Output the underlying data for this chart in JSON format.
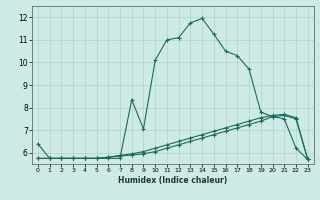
{
  "xlabel": "Humidex (Indice chaleur)",
  "bg_color": "#ceeae7",
  "line_color": "#1b6b5a",
  "grid_color": "#aed4cf",
  "xlim": [
    -0.5,
    23.5
  ],
  "ylim": [
    5.5,
    12.5
  ],
  "xticks": [
    0,
    1,
    2,
    3,
    4,
    5,
    6,
    7,
    8,
    9,
    10,
    11,
    12,
    13,
    14,
    15,
    16,
    17,
    18,
    19,
    20,
    21,
    22,
    23
  ],
  "yticks": [
    6,
    7,
    8,
    9,
    10,
    11,
    12
  ],
  "curve1_x": [
    0,
    1,
    2,
    3,
    4,
    5,
    6,
    7,
    8,
    9,
    10,
    11,
    12,
    13,
    14,
    15,
    16,
    17,
    18,
    19,
    20,
    21,
    22,
    23
  ],
  "curve1_y": [
    6.4,
    5.75,
    5.75,
    5.75,
    5.75,
    5.75,
    5.75,
    5.75,
    8.35,
    7.05,
    10.1,
    11.0,
    11.1,
    11.75,
    11.95,
    11.25,
    10.5,
    10.3,
    9.7,
    7.8,
    7.6,
    7.5,
    6.2,
    5.7
  ],
  "curve2_x": [
    0,
    1,
    2,
    3,
    4,
    5,
    6,
    7,
    8,
    9,
    10,
    11,
    12,
    13,
    14,
    15,
    16,
    17,
    18,
    19,
    20,
    21,
    22,
    23
  ],
  "curve2_y": [
    5.75,
    5.75,
    5.75,
    5.75,
    5.75,
    5.75,
    5.8,
    5.85,
    5.9,
    5.95,
    6.05,
    6.2,
    6.35,
    6.5,
    6.65,
    6.8,
    6.95,
    7.1,
    7.25,
    7.4,
    7.6,
    7.65,
    7.5,
    5.7
  ],
  "curve3_x": [
    0,
    1,
    2,
    3,
    4,
    5,
    6,
    7,
    8,
    9,
    10,
    11,
    12,
    13,
    14,
    15,
    16,
    17,
    18,
    19,
    20,
    21,
    22,
    23
  ],
  "curve3_y": [
    5.75,
    5.75,
    5.75,
    5.75,
    5.75,
    5.75,
    5.8,
    5.88,
    5.95,
    6.05,
    6.2,
    6.35,
    6.5,
    6.65,
    6.8,
    6.95,
    7.1,
    7.25,
    7.4,
    7.55,
    7.65,
    7.7,
    7.55,
    5.7
  ]
}
